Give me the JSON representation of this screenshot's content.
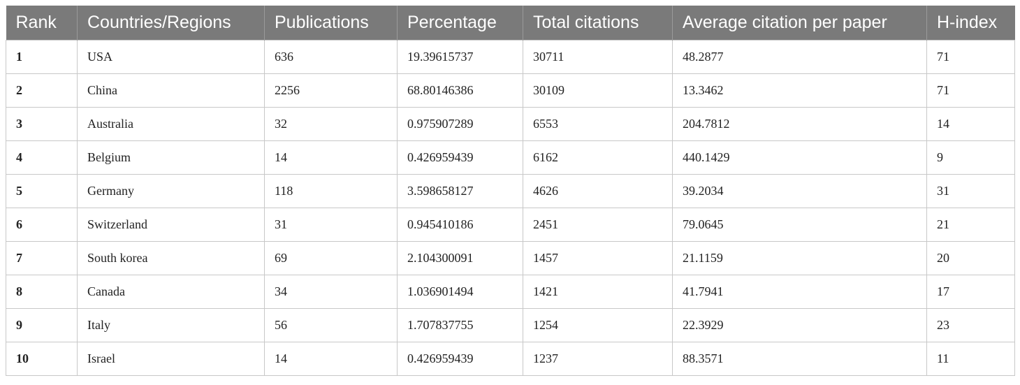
{
  "table": {
    "headers": [
      "Rank",
      "Countries/Regions",
      "Publications",
      "Percentage",
      "Total citations",
      "Average citation per paper",
      "H-index"
    ],
    "rows": [
      [
        "1",
        "USA",
        "636",
        "19.39615737",
        "30711",
        "48.2877",
        "71"
      ],
      [
        "2",
        "China",
        "2256",
        "68.80146386",
        "30109",
        "13.3462",
        "71"
      ],
      [
        "3",
        "Australia",
        "32",
        "0.975907289",
        "6553",
        "204.7812",
        "14"
      ],
      [
        "4",
        "Belgium",
        "14",
        "0.426959439",
        "6162",
        "440.1429",
        "9"
      ],
      [
        "5",
        "Germany",
        "118",
        "3.598658127",
        "4626",
        "39.2034",
        "31"
      ],
      [
        "6",
        "Switzerland",
        "31",
        "0.945410186",
        "2451",
        "79.0645",
        "21"
      ],
      [
        "7",
        "South korea",
        "69",
        "2.104300091",
        "1457",
        "21.1159",
        "20"
      ],
      [
        "8",
        "Canada",
        "34",
        "1.036901494",
        "1421",
        "41.7941",
        "17"
      ],
      [
        "9",
        "Italy",
        "56",
        "1.707837755",
        "1254",
        "22.3929",
        "23"
      ],
      [
        "10",
        "Israel",
        "14",
        "0.426959439",
        "1237",
        "88.3571",
        "11"
      ]
    ]
  }
}
